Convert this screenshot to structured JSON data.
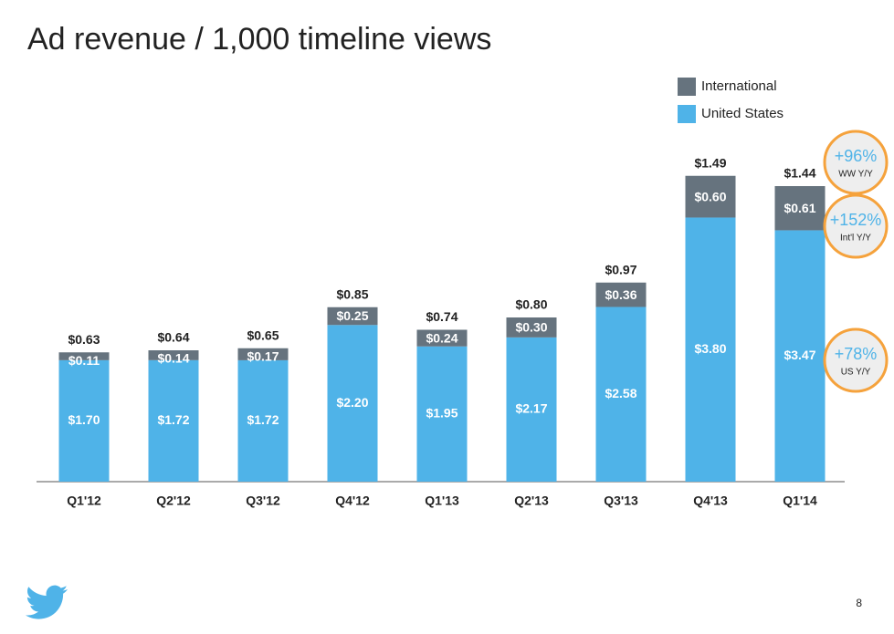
{
  "chart_data": {
    "type": "stacked-bar",
    "title": "Ad revenue / 1,000 timeline views",
    "categories": [
      "Q1'12",
      "Q2'12",
      "Q3'12",
      "Q4'12",
      "Q1'13",
      "Q2'13",
      "Q3'13",
      "Q4'13",
      "Q1'14"
    ],
    "series": [
      {
        "name": "International",
        "color": "#66737e",
        "values": [
          0.11,
          0.14,
          0.17,
          0.25,
          0.24,
          0.3,
          0.36,
          0.6,
          0.61
        ],
        "value_labels": [
          "$0.11",
          "$0.14",
          "$0.17",
          "$0.25",
          "$0.24",
          "$0.30",
          "$0.36",
          "$0.60",
          "$0.61"
        ]
      },
      {
        "name": "United States",
        "color": "#4fb3e8",
        "values": [
          1.7,
          1.72,
          1.72,
          2.2,
          1.95,
          2.17,
          2.58,
          3.8,
          3.47
        ],
        "value_labels": [
          "$1.70",
          "$1.72",
          "$1.72",
          "$2.20",
          "$1.95",
          "$2.17",
          "$2.58",
          "$3.80",
          "$3.47"
        ]
      }
    ],
    "totals": {
      "values": [
        0.63,
        0.64,
        0.65,
        0.85,
        0.74,
        0.8,
        0.97,
        1.49,
        1.44
      ],
      "value_labels": [
        "$0.63",
        "$0.64",
        "$0.65",
        "$0.85",
        "$0.74",
        "$0.80",
        "$0.97",
        "$1.49",
        "$1.44"
      ]
    },
    "annotations": [
      {
        "value_label": "+96%",
        "label": "WW Y/Y"
      },
      {
        "value_label": "+152%",
        "label": "Int'l Y/Y"
      },
      {
        "value_label": "+78%",
        "label": "US Y/Y"
      }
    ]
  },
  "page_number": "8"
}
